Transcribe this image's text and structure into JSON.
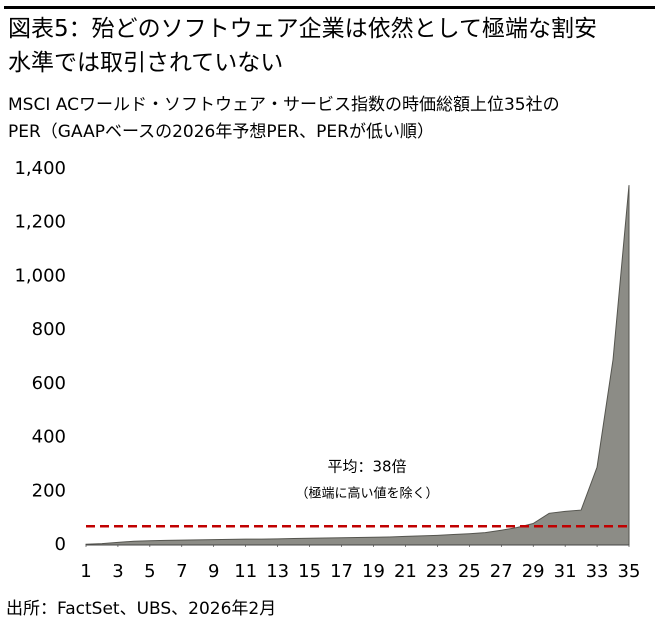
{
  "chart_data": {
    "type": "area",
    "title": [
      "図表5：殆どのソフトウェア企業は依然として極端な割安",
      "水準では取引されていない"
    ],
    "subtitle": [
      "MSCI ACワールド・ソフトウェア・サービス指数の時価総額上位35社の",
      "PER（GAAPベースの2026年予想PER、PERが低い順）"
    ],
    "source": "出所：FactSet、UBS、2026年2月",
    "x": [
      1,
      2,
      3,
      4,
      5,
      6,
      7,
      8,
      9,
      10,
      11,
      12,
      13,
      14,
      15,
      16,
      17,
      18,
      19,
      20,
      21,
      22,
      23,
      24,
      25,
      26,
      27,
      28,
      29,
      30,
      31,
      32,
      33,
      34,
      35
    ],
    "values": [
      3,
      5,
      10,
      14,
      16,
      17,
      18,
      19,
      20,
      21,
      22,
      22,
      23,
      24,
      25,
      26,
      27,
      28,
      29,
      30,
      32,
      34,
      36,
      39,
      42,
      46,
      55,
      65,
      80,
      118,
      125,
      130,
      290,
      690,
      1340
    ],
    "color": "#8c8c86",
    "xlim": [
      1,
      35
    ],
    "xticks": [
      1,
      3,
      5,
      7,
      9,
      11,
      13,
      15,
      17,
      19,
      21,
      23,
      25,
      27,
      29,
      31,
      33,
      35
    ],
    "ylim": [
      0,
      1400
    ],
    "yticks": [
      0,
      200,
      400,
      600,
      800,
      {
        "value": 1000,
        "label": "1,000"
      },
      {
        "value": 1200,
        "label": "1,200"
      },
      {
        "value": 1400,
        "label": "1,400"
      }
    ],
    "reference_line": {
      "value": 70,
      "color": "#c00000",
      "label": "平均：38倍",
      "sublabel": "（極端に高い値を除く）"
    }
  }
}
